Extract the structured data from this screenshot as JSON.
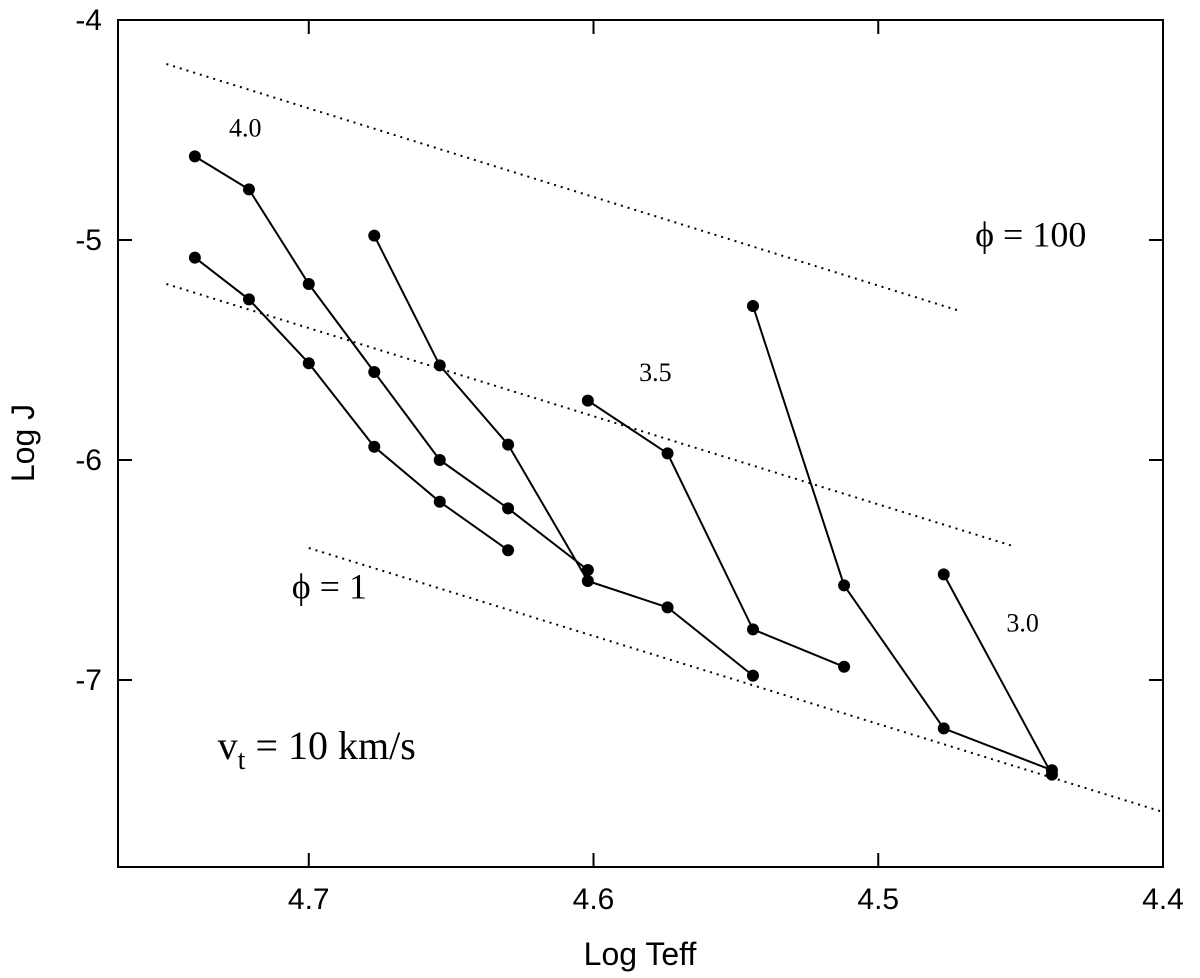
{
  "chart_data": {
    "type": "line",
    "xlabel": "Log Teff",
    "ylabel": "Log J",
    "xlim": [
      4.767,
      4.4
    ],
    "ylim": [
      -7.85,
      -4.0
    ],
    "x_reversed": true,
    "grid": false,
    "xticks": [
      4.7,
      4.6,
      4.5,
      4.4
    ],
    "xtick_labels": [
      "4.7",
      "4.6",
      "4.5",
      "4.4"
    ],
    "yticks": [
      -4,
      -5,
      -6,
      -7
    ],
    "ytick_labels": [
      "-4",
      "-5",
      "-6",
      "-7"
    ],
    "series": [
      {
        "marker": "circle",
        "line": "solid",
        "points": [
          [
            4.74,
            -4.62
          ],
          [
            4.721,
            -4.77
          ],
          [
            4.7,
            -5.2
          ],
          [
            4.677,
            -5.6
          ],
          [
            4.654,
            -6.0
          ],
          [
            4.63,
            -6.22
          ],
          [
            4.602,
            -6.5
          ]
        ]
      },
      {
        "marker": "circle",
        "line": "solid",
        "points": [
          [
            4.74,
            -5.08
          ],
          [
            4.721,
            -5.27
          ],
          [
            4.7,
            -5.56
          ],
          [
            4.677,
            -5.94
          ],
          [
            4.654,
            -6.19
          ],
          [
            4.63,
            -6.41
          ]
        ]
      },
      {
        "marker": "circle",
        "line": "solid",
        "points": [
          [
            4.677,
            -4.98
          ],
          [
            4.654,
            -5.57
          ],
          [
            4.63,
            -5.93
          ],
          [
            4.602,
            -6.55
          ],
          [
            4.574,
            -6.67
          ],
          [
            4.544,
            -6.98
          ]
        ]
      },
      {
        "marker": "circle",
        "line": "solid",
        "points": [
          [
            4.602,
            -5.73
          ],
          [
            4.574,
            -5.97
          ],
          [
            4.544,
            -6.77
          ],
          [
            4.512,
            -6.94
          ]
        ]
      },
      {
        "marker": "circle",
        "line": "solid",
        "points": [
          [
            4.544,
            -5.3
          ],
          [
            4.512,
            -6.57
          ],
          [
            4.477,
            -7.22
          ],
          [
            4.439,
            -7.41
          ]
        ]
      },
      {
        "marker": "circle",
        "line": "solid",
        "points": [
          [
            4.477,
            -6.52
          ],
          [
            4.439,
            -7.43
          ]
        ]
      }
    ],
    "reference_lines": [
      {
        "style": "dotted",
        "points": [
          [
            4.75,
            -4.2
          ],
          [
            4.472,
            -5.32
          ]
        ]
      },
      {
        "style": "dotted",
        "points": [
          [
            4.75,
            -5.2
          ],
          [
            4.453,
            -6.39
          ]
        ]
      },
      {
        "style": "dotted",
        "points": [
          [
            4.7,
            -6.4
          ],
          [
            4.4,
            -7.6
          ]
        ]
      }
    ],
    "annotations": [
      {
        "text": "4.0",
        "x": 4.728,
        "y": -4.53,
        "size": "small"
      },
      {
        "text": "3.5",
        "x": 4.584,
        "y": -5.64,
        "size": "small"
      },
      {
        "text": "3.0",
        "x": 4.455,
        "y": -6.78,
        "size": "small"
      },
      {
        "text": "ϕ = 100",
        "x": 4.466,
        "y": -5.03,
        "size": "large"
      },
      {
        "text": "ϕ = 1",
        "x": 4.706,
        "y": -6.63,
        "size": "large"
      }
    ],
    "note": {
      "main": "v",
      "sub": "t",
      "rest": " = 10 km/s",
      "x": 4.732,
      "y": -7.36
    }
  }
}
